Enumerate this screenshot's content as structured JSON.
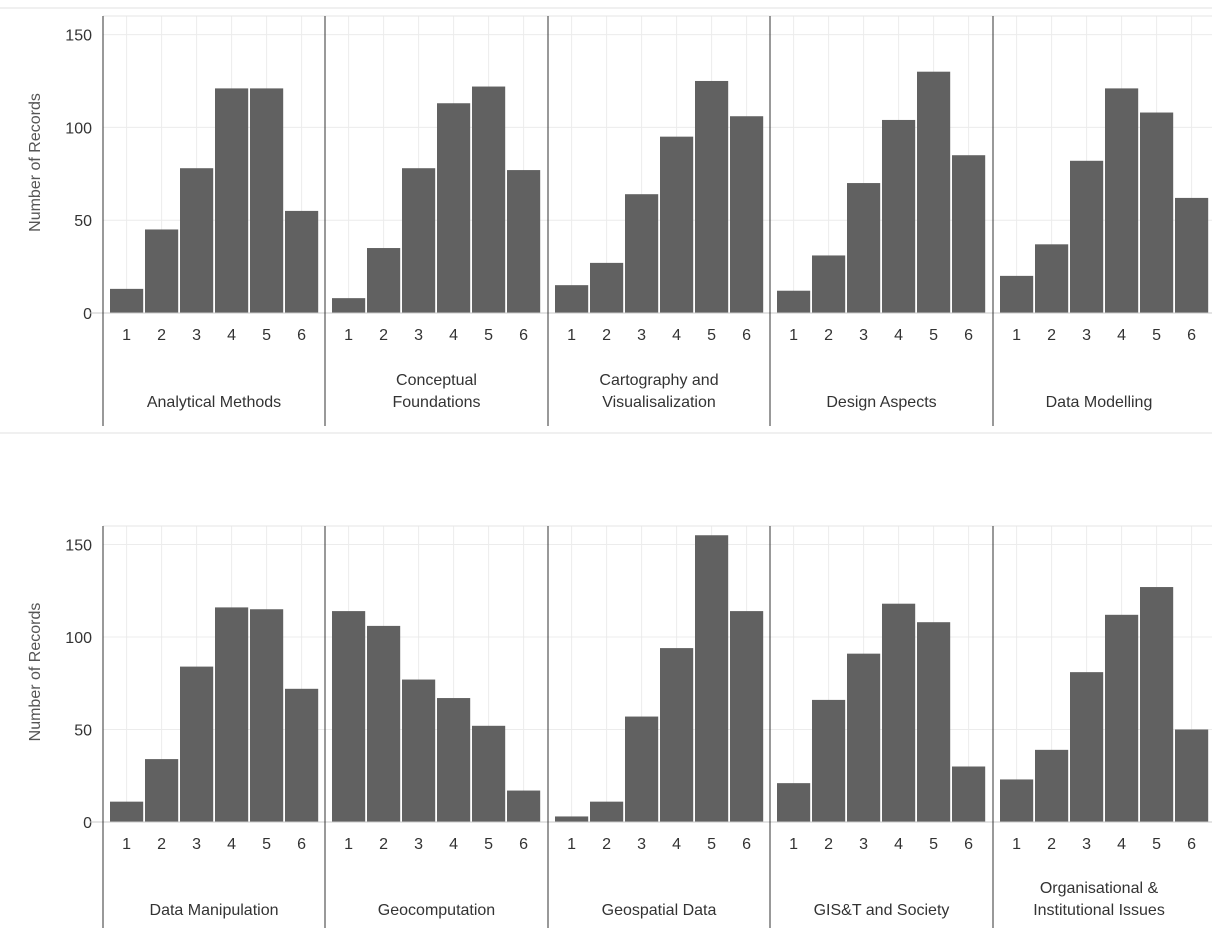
{
  "chart_data": [
    {
      "type": "bar",
      "ylabel": "Number of Records",
      "ylim": [
        0,
        160
      ],
      "yticks": [
        0,
        50,
        100,
        150
      ],
      "grid": true,
      "panels": [
        {
          "category": [
            "Analytical Methods"
          ],
          "x": [
            "1",
            "2",
            "3",
            "4",
            "5",
            "6"
          ],
          "values": [
            13,
            45,
            78,
            121,
            121,
            55
          ]
        },
        {
          "category": [
            "Conceptual",
            "Foundations"
          ],
          "x": [
            "1",
            "2",
            "3",
            "4",
            "5",
            "6"
          ],
          "values": [
            8,
            35,
            78,
            113,
            122,
            77
          ]
        },
        {
          "category": [
            "Cartography and",
            "Visualisalization"
          ],
          "x": [
            "1",
            "2",
            "3",
            "4",
            "5",
            "6"
          ],
          "values": [
            15,
            27,
            64,
            95,
            125,
            106
          ]
        },
        {
          "category": [
            "Design Aspects"
          ],
          "x": [
            "1",
            "2",
            "3",
            "4",
            "5",
            "6"
          ],
          "values": [
            12,
            31,
            70,
            104,
            130,
            85
          ]
        },
        {
          "category": [
            "Data Modelling"
          ],
          "x": [
            "1",
            "2",
            "3",
            "4",
            "5",
            "6"
          ],
          "values": [
            20,
            37,
            82,
            121,
            108,
            62
          ]
        }
      ]
    },
    {
      "type": "bar",
      "ylabel": "Number of Records",
      "ylim": [
        0,
        160
      ],
      "yticks": [
        0,
        50,
        100,
        150
      ],
      "grid": true,
      "panels": [
        {
          "category": [
            "Data Manipulation"
          ],
          "x": [
            "1",
            "2",
            "3",
            "4",
            "5",
            "6"
          ],
          "values": [
            11,
            34,
            84,
            116,
            115,
            72
          ]
        },
        {
          "category": [
            "Geocomputation"
          ],
          "x": [
            "1",
            "2",
            "3",
            "4",
            "5",
            "6"
          ],
          "values": [
            114,
            106,
            77,
            67,
            52,
            17
          ]
        },
        {
          "category": [
            "Geospatial Data"
          ],
          "x": [
            "1",
            "2",
            "3",
            "4",
            "5",
            "6"
          ],
          "values": [
            3,
            11,
            57,
            94,
            155,
            114
          ]
        },
        {
          "category": [
            "GIS&T and Society"
          ],
          "x": [
            "1",
            "2",
            "3",
            "4",
            "5",
            "6"
          ],
          "values": [
            21,
            66,
            91,
            118,
            108,
            30
          ]
        },
        {
          "category": [
            "Organisational &",
            "Institutional Issues"
          ],
          "x": [
            "1",
            "2",
            "3",
            "4",
            "5",
            "6"
          ],
          "values": [
            23,
            39,
            81,
            112,
            127,
            50
          ]
        }
      ]
    }
  ],
  "colors": {
    "bar": "#616161",
    "grid": "#ececec",
    "divider": "#333333",
    "axis": "#c8c8c8"
  }
}
